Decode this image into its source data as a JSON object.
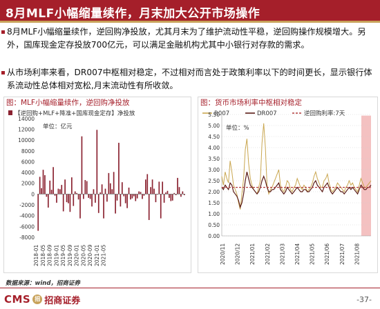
{
  "slide": {
    "title": "8月MLF小幅缩量续作，月末加大公开市场操作",
    "paragraph1": "8月MLF小幅缩量续作，逆回购净投放，尤其月末为了维护流动性平稳，逆回购操作规模增大。另外，国库现金定存投放700亿元，可以满足金融机构尤其中小银行对存款的需求。",
    "paragraph2": "从市场利率来看，DR007中枢相对稳定，不过相对而言处于政策利率以下的时间更长，显示银行体系流动性总体相对宽松,月末流动性有所收敛。",
    "source": "数据来源：wind，招商证券",
    "logo_text": "CMS",
    "logo_badge": "招",
    "logo_cn": "招商证券",
    "page_number": "-37-"
  },
  "colors": {
    "brand_red": "#a51f2a",
    "gold": "#c8a25a",
    "bar": "#8b2331",
    "r007": "#c9a64f",
    "dr007": "#5a1a14",
    "policy": "#b23a3a",
    "highlight": "#f2b6b6"
  },
  "chart_data": [
    {
      "type": "bar",
      "title": "图：MLF小幅缩量续作，逆回购净投放",
      "legend_label": "【逆回购+MLF+降准+国库现金定存】净投放",
      "unit_label": "单位：亿元",
      "x_tick_labels": [
        "2018-01",
        "2018-05",
        "2018-09",
        "2019-01",
        "2019-05",
        "2019-09",
        "2020-01",
        "2020-05",
        "2020-09",
        "2021-01",
        "2021-05"
      ],
      "ylim": [
        -8000,
        15000
      ],
      "yticks": [
        -8000,
        -6000,
        -4000,
        -2000,
        0,
        2000,
        4000,
        6000,
        8000,
        10000,
        12000,
        14000
      ],
      "values": [
        -6800,
        3200,
        1100,
        4500,
        3500,
        -500,
        -2500,
        2500,
        800,
        5000,
        -300,
        -1600,
        1000,
        900,
        1700,
        -3200,
        2700,
        -1500,
        -1700,
        -3300,
        3100,
        -2200,
        500,
        200,
        -1000,
        -4500,
        10700,
        -900,
        2600,
        2400,
        -700,
        -900,
        -2300,
        900,
        -1600,
        11900,
        -3500,
        300,
        1800,
        -4500,
        1000,
        -1400,
        3900,
        2000,
        900,
        4100,
        -3600,
        -1200,
        9500,
        -2300,
        2200,
        -400,
        -1700,
        -2600,
        1200,
        -1000,
        -800,
        -400,
        -1300,
        -800,
        500,
        400,
        -900,
        -300,
        2700,
        3700,
        -4800,
        1300,
        2700,
        1000,
        -1500,
        -100,
        2300,
        -4500,
        2300,
        -1600,
        300,
        600,
        -700,
        -1300,
        -1200,
        200,
        -200,
        3000,
        1300,
        -500,
        500,
        -200
      ]
    },
    {
      "type": "line",
      "title": "图：货币市场利率中枢相对稳定",
      "unit_label": "单位：%",
      "x_tick_labels": [
        "2020/11",
        "2020/12",
        "2021/01",
        "2021/02",
        "2021/03",
        "2021/04",
        "2021/05",
        "2021/06",
        "2021/07",
        "2021/08"
      ],
      "ylim": [
        0,
        5.5
      ],
      "yticks": [
        0.0,
        0.5,
        1.0,
        1.5,
        2.0,
        2.5,
        3.0,
        3.5,
        4.0,
        4.5,
        5.0,
        5.5
      ],
      "ytick_labels": [
        "0.00",
        "0.50",
        "1.00",
        "1.50",
        "2.00",
        "2.50",
        "3.00",
        "3.50",
        "4.00",
        "4.50",
        "5.00",
        "5.50"
      ],
      "highlight_range": [
        9.35,
        10.0
      ],
      "series": [
        {
          "name": "R007",
          "values": [
            2.7,
            2.3,
            2.9,
            2.6,
            2.4,
            3.4,
            2.9,
            2.3,
            2.1,
            1.9,
            1.5,
            1.2,
            1.9,
            2.6,
            3.9,
            4.4,
            3.3,
            2.6,
            2.3,
            2.1,
            2.0,
            1.9,
            2.2,
            2.5,
            4.2,
            5.1,
            4.0,
            2.3,
            1.9,
            2.1,
            2.2,
            2.4,
            2.6,
            2.8,
            3.0,
            2.3,
            2.1,
            2.0,
            2.2,
            2.5,
            2.4,
            2.1,
            2.0,
            2.2,
            2.3,
            2.6,
            2.4,
            2.2,
            2.1,
            2.3,
            2.2,
            2.0,
            2.1,
            2.2,
            2.4,
            2.7,
            2.9,
            2.6,
            2.4,
            2.2,
            2.2,
            2.5,
            2.6,
            2.8,
            2.4,
            2.1,
            2.0,
            2.1,
            2.2,
            2.4,
            2.3,
            2.2,
            2.1,
            2.0,
            2.2,
            2.3,
            2.5,
            2.3,
            2.4,
            2.2,
            2.1,
            2.0,
            2.3,
            2.6,
            2.4,
            2.2,
            2.2,
            2.3,
            2.4,
            2.5
          ]
        },
        {
          "name": "DR007",
          "values": [
            2.2,
            2.1,
            2.3,
            2.2,
            2.1,
            2.4,
            2.3,
            2.0,
            1.9,
            1.8,
            1.6,
            1.3,
            1.5,
            1.9,
            2.5,
            2.9,
            2.6,
            2.3,
            2.2,
            2.1,
            2.0,
            1.9,
            2.0,
            2.2,
            2.5,
            2.7,
            2.5,
            2.2,
            2.0,
            2.0,
            2.1,
            2.1,
            2.2,
            2.3,
            2.4,
            2.1,
            2.0,
            1.9,
            2.0,
            2.2,
            2.1,
            2.0,
            1.9,
            2.0,
            2.1,
            2.2,
            2.1,
            2.0,
            2.0,
            2.1,
            2.1,
            2.0,
            2.0,
            2.1,
            2.2,
            2.4,
            2.5,
            2.3,
            2.2,
            2.1,
            2.0,
            2.2,
            2.3,
            2.4,
            2.2,
            2.0,
            1.9,
            2.0,
            2.1,
            2.2,
            2.1,
            2.0,
            2.0,
            1.9,
            2.0,
            2.1,
            2.2,
            2.1,
            2.2,
            2.1,
            2.0,
            1.9,
            2.1,
            2.3,
            2.2,
            2.1,
            2.1,
            2.2,
            2.2,
            2.3
          ]
        },
        {
          "name": "逆回购利率:7天",
          "values": [
            2.2,
            2.2,
            2.2,
            2.2,
            2.2,
            2.2,
            2.2,
            2.2,
            2.2,
            2.2,
            2.2,
            2.2,
            2.2,
            2.2,
            2.2,
            2.2,
            2.2,
            2.2,
            2.2,
            2.2,
            2.2,
            2.2,
            2.2,
            2.2,
            2.2,
            2.2,
            2.2,
            2.2,
            2.2,
            2.2,
            2.2,
            2.2,
            2.2,
            2.2,
            2.2,
            2.2,
            2.2,
            2.2,
            2.2,
            2.2,
            2.2,
            2.2,
            2.2,
            2.2,
            2.2,
            2.2,
            2.2,
            2.2,
            2.2,
            2.2,
            2.2,
            2.2,
            2.2,
            2.2,
            2.2,
            2.2,
            2.2,
            2.2,
            2.2,
            2.2,
            2.2,
            2.2,
            2.2,
            2.2,
            2.2,
            2.2,
            2.2,
            2.2,
            2.2,
            2.2,
            2.2,
            2.2,
            2.2,
            2.2,
            2.2,
            2.2,
            2.2,
            2.2,
            2.2,
            2.2,
            2.2,
            2.2,
            2.2,
            2.2,
            2.2,
            2.2,
            2.2,
            2.2,
            2.2,
            2.2
          ]
        }
      ]
    }
  ]
}
